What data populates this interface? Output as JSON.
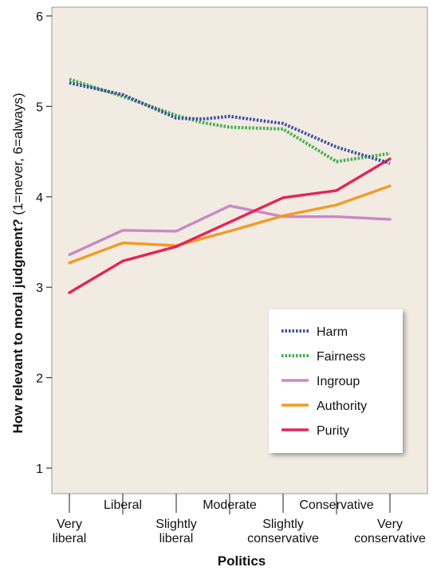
{
  "chart_data": {
    "type": "line",
    "title": "",
    "xlabel": "Politics",
    "ylabel_bold": "How relevant to moral judgment?",
    "ylabel_note": " (1=never, 6=always)",
    "ylim": [
      0.5,
      6.1
    ],
    "yticks": [
      1,
      2,
      3,
      4,
      5,
      6
    ],
    "categories": [
      "Very liberal",
      "Liberal",
      "Slightly liberal",
      "Moderate",
      "Slightly conservative",
      "Conservative",
      "Very conservative"
    ],
    "x_labels": [
      {
        "lines": [
          "Very",
          "liberal"
        ],
        "row": "lower"
      },
      {
        "lines": [
          "Liberal"
        ],
        "row": "upper"
      },
      {
        "lines": [
          "Slightly",
          "liberal"
        ],
        "row": "lower"
      },
      {
        "lines": [
          "Moderate"
        ],
        "row": "upper"
      },
      {
        "lines": [
          "Slightly",
          "conservative"
        ],
        "row": "lower"
      },
      {
        "lines": [
          "Conservative"
        ],
        "row": "upper"
      },
      {
        "lines": [
          "Very",
          "conservative"
        ],
        "row": "lower"
      }
    ],
    "grid": false,
    "legend_position": "bottom-right",
    "series": [
      {
        "name": "Harm",
        "color": "#3a4fa3",
        "style": "dotted",
        "x": [
          0,
          1,
          2,
          2.5,
          3,
          4,
          5,
          6
        ],
        "values": [
          5.26,
          5.13,
          4.87,
          4.86,
          4.89,
          4.81,
          4.55,
          4.37
        ]
      },
      {
        "name": "Fairness",
        "color": "#3cb04a",
        "style": "dotted",
        "x": [
          0,
          1,
          2,
          2.5,
          3,
          4,
          5,
          6
        ],
        "values": [
          5.3,
          5.11,
          4.9,
          4.82,
          4.77,
          4.75,
          4.39,
          4.48
        ]
      },
      {
        "name": "Ingroup",
        "color": "#c889c8",
        "style": "solid",
        "x": [
          0,
          1,
          2,
          3,
          4,
          5,
          6
        ],
        "values": [
          3.36,
          3.63,
          3.62,
          3.9,
          3.78,
          3.78,
          3.75
        ]
      },
      {
        "name": "Authority",
        "color": "#f39a25",
        "style": "solid",
        "x": [
          0,
          1,
          2,
          3,
          4,
          5,
          6
        ],
        "values": [
          3.27,
          3.49,
          3.46,
          3.62,
          3.79,
          3.91,
          4.12
        ]
      },
      {
        "name": "Purity",
        "color": "#e3245a",
        "style": "solid",
        "x": [
          0,
          1,
          2,
          3,
          4,
          5,
          6
        ],
        "values": [
          2.94,
          3.29,
          3.45,
          3.72,
          3.99,
          4.07,
          4.42
        ]
      }
    ]
  }
}
